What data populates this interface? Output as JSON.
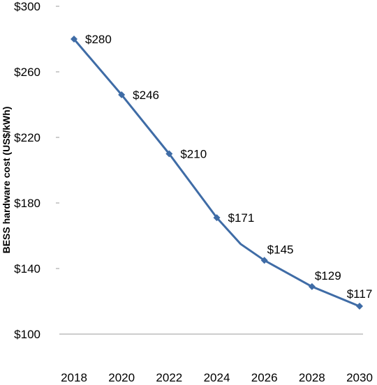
{
  "chart_data": {
    "type": "line",
    "title": "",
    "xlabel": "",
    "ylabel": "BESS hardware cost (US$/kWh)",
    "ylim": [
      100,
      300
    ],
    "y_tick_values": [
      100,
      140,
      180,
      220,
      260,
      300
    ],
    "y_tick_labels": [
      "$100",
      "$140",
      "$180",
      "$220",
      "$260",
      "$300"
    ],
    "x_tick_values": [
      2018,
      2020,
      2022,
      2024,
      2026,
      2028,
      2030
    ],
    "x_tick_labels": [
      "2018",
      "2020",
      "2022",
      "2024",
      "2026",
      "2028",
      "2030"
    ],
    "xlim": [
      2018,
      2030
    ],
    "grid": false,
    "line_points": [
      {
        "x": 2018,
        "y": 280
      },
      {
        "x": 2020,
        "y": 246
      },
      {
        "x": 2022,
        "y": 210
      },
      {
        "x": 2024,
        "y": 171
      },
      {
        "x": 2025,
        "y": 155
      },
      {
        "x": 2026,
        "y": 145
      },
      {
        "x": 2028,
        "y": 129
      },
      {
        "x": 2030,
        "y": 117
      }
    ],
    "markers": [
      {
        "x": 2018,
        "y": 280,
        "label": "$280"
      },
      {
        "x": 2020,
        "y": 246,
        "label": "$246"
      },
      {
        "x": 2022,
        "y": 210,
        "label": "$210"
      },
      {
        "x": 2024,
        "y": 171,
        "label": "$171"
      },
      {
        "x": 2026,
        "y": 145,
        "label": "$145"
      },
      {
        "x": 2028,
        "y": 129,
        "label": "$129"
      },
      {
        "x": 2030,
        "y": 117,
        "label": "$117"
      }
    ],
    "series_color": "#3F6CA6",
    "axis_color": "#9B9B9B"
  }
}
